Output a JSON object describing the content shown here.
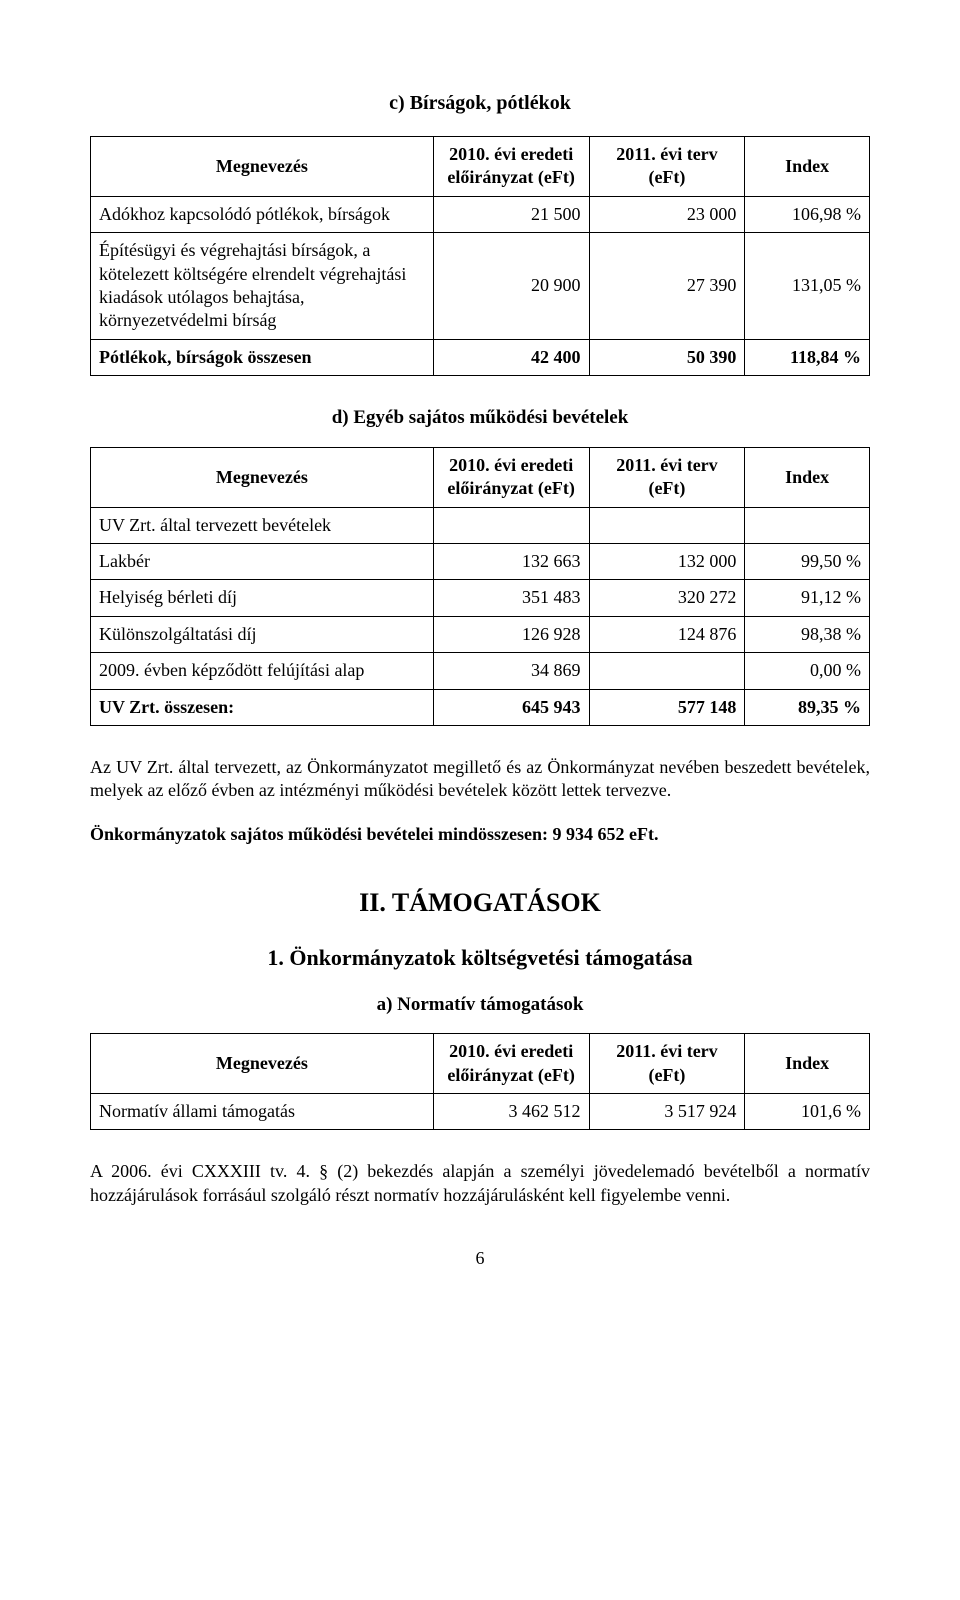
{
  "headings": {
    "c": "c) Bírságok, pótlékok",
    "d": "d) Egyéb sajátos működési bevételek",
    "II": "II. TÁMOGATÁSOK",
    "II_1": "1.  Önkormányzatok költségvetési támogatása",
    "II_1_a": "a) Normatív támogatások"
  },
  "table_headers": {
    "name": "Megnevezés",
    "col2": "2010. évi eredeti előirányzat (eFt)",
    "col3": "2011. évi terv (eFt)",
    "col4": "Index"
  },
  "table_c": {
    "rows": [
      {
        "name": "Adókhoz kapcsolódó pótlékok, bírságok",
        "v1": "21 500",
        "v2": "23 000",
        "idx": "106,98 %",
        "bold": false
      },
      {
        "name": "Építésügyi és végrehajtási bírságok, a kötelezett költségére elrendelt végrehajtási kiadások utólagos behajtása, környezetvédelmi bírság",
        "v1": "20 900",
        "v2": "27 390",
        "idx": "131,05 %",
        "bold": false
      },
      {
        "name": "Pótlékok, bírságok összesen",
        "v1": "42 400",
        "v2": "50 390",
        "idx": "118,84 %",
        "bold": true
      }
    ]
  },
  "table_d": {
    "pre_row": {
      "name": "UV Zrt. által tervezett bevételek"
    },
    "rows": [
      {
        "name": "Lakbér",
        "v1": "132 663",
        "v2": "132 000",
        "idx": "99,50 %",
        "bold": false
      },
      {
        "name": "Helyiség bérleti díj",
        "v1": "351 483",
        "v2": "320 272",
        "idx": "91,12 %",
        "bold": false
      },
      {
        "name": "Különszolgáltatási díj",
        "v1": "126 928",
        "v2": "124 876",
        "idx": "98,38 %",
        "bold": false
      },
      {
        "name": "2009. évben képződött felújítási alap",
        "v1": "34 869",
        "v2": "",
        "idx": "0,00 %",
        "bold": false
      },
      {
        "name": "UV Zrt. összesen:",
        "v1": "645 943",
        "v2": "577 148",
        "idx": "89,35 %",
        "bold": true
      }
    ]
  },
  "table_a": {
    "rows": [
      {
        "name": "Normatív állami támogatás",
        "v1": "3 462 512",
        "v2": "3 517 924",
        "idx": "101,6 %",
        "bold": false
      }
    ]
  },
  "paragraphs": {
    "p1": "Az UV Zrt. által tervezett, az Önkormányzatot megillető és az Önkormányzat nevében beszedett bevételek, melyek az előző évben az intézményi működési bevételek között lettek tervezve.",
    "p2": "Önkormányzatok sajátos működési bevételei mindösszesen: 9 934 652 eFt.",
    "p3": "A 2006. évi CXXXIII tv. 4. § (2) bekezdés alapján a személyi jövedelemadó bevételből a normatív hozzájárulások forrásául szolgáló részt normatív hozzájárulásként kell figyelembe venni."
  },
  "page_number": "6"
}
